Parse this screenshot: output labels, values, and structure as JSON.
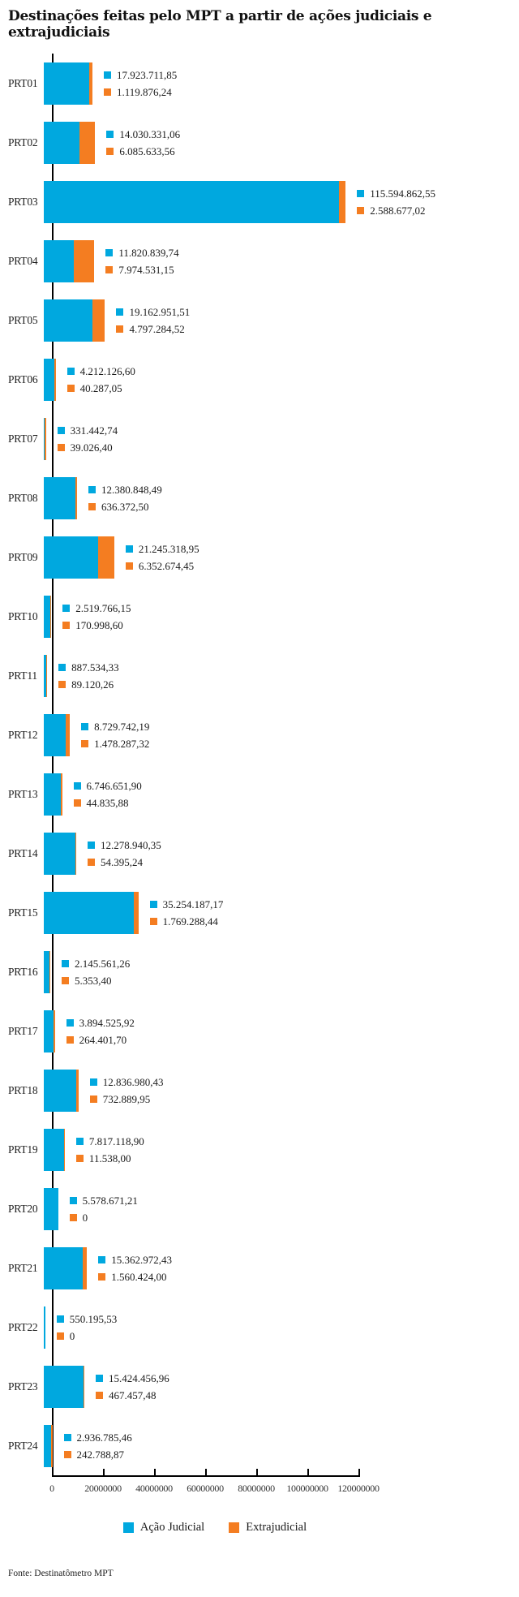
{
  "title": "Destinações feitas pelo MPT a partir de ações judiciais e extrajudiciais",
  "source": "Fonte: Destinatômetro MPT",
  "colors": {
    "judicial": "#00A8DF",
    "extrajudicial": "#F47D21",
    "axis": "#000000"
  },
  "legend": [
    {
      "label": "Ação Judicial",
      "color": "#00A8DF"
    },
    {
      "label": "Extrajudicial",
      "color": "#F47D21"
    }
  ],
  "chart_data": {
    "type": "bar",
    "orientation": "horizontal",
    "stacked": true,
    "title": "Destinações feitas pelo MPT a partir de ações judiciais e extrajudiciais",
    "xlabel": "",
    "ylabel": "",
    "xlim": [
      0,
      120000000
    ],
    "x_ticks": [
      "0",
      "20000000",
      "40000000",
      "60000000",
      "80000000",
      "100000000",
      "120000000"
    ],
    "grid": false,
    "legend_position": "bottom",
    "categories": [
      "PRT01",
      "PRT02",
      "PRT03",
      "PRT04",
      "PRT05",
      "PRT06",
      "PRT07",
      "PRT08",
      "PRT09",
      "PRT10",
      "PRT11",
      "PRT12",
      "PRT13",
      "PRT14",
      "PRT15",
      "PRT16",
      "PRT17",
      "PRT18",
      "PRT19",
      "PRT20",
      "PRT21",
      "PRT22",
      "PRT23",
      "PRT24"
    ],
    "series": [
      {
        "name": "Ação Judicial",
        "color": "#00A8DF",
        "values": [
          17923711.85,
          14030331.06,
          115594862.55,
          11820839.74,
          19162951.51,
          4212126.6,
          331442.74,
          12380848.49,
          21245318.95,
          2519766.15,
          887534.33,
          8729742.19,
          6746651.9,
          12278940.35,
          35254187.17,
          2145561.26,
          3894525.92,
          12836980.43,
          7817118.9,
          5578671.21,
          15362972.43,
          550195.53,
          15424456.96,
          2936785.46
        ],
        "labels": [
          "17.923.711,85",
          "14.030.331,06",
          "115.594.862,55",
          "11.820.839,74",
          "19.162.951,51",
          "4.212.126,60",
          "331.442,74",
          "12.380.848,49",
          "21.245.318,95",
          "2.519.766,15",
          "887.534,33",
          "8.729.742,19",
          "6.746.651,90",
          "12.278.940,35",
          "35.254.187,17",
          "2.145.561,26",
          "3.894.525,92",
          "12.836.980,43",
          "7.817.118,90",
          "5.578.671,21",
          "15.362.972,43",
          "550.195,53",
          "15.424.456,96",
          "2.936.785,46"
        ]
      },
      {
        "name": "Extrajudicial",
        "color": "#F47D21",
        "values": [
          1119876.24,
          6085633.56,
          2588677.02,
          7974531.15,
          4797284.52,
          40287.05,
          39026.4,
          636372.5,
          6352674.45,
          170998.6,
          89120.26,
          1478287.32,
          44835.88,
          54395.24,
          1769288.44,
          5353.4,
          264401.7,
          732889.95,
          11538.0,
          0,
          1560424.0,
          0,
          467457.48,
          242788.87
        ],
        "labels": [
          "1.119.876,24",
          "6.085.633,56",
          "2.588.677,02",
          "7.974.531,15",
          "4.797.284,52",
          "40.287,05",
          "39.026,40",
          "636.372,50",
          "6.352.674,45",
          "170.998,60",
          "89.120,26",
          "1.478.287,32",
          "44.835,88",
          "54.395,24",
          "1.769.288,44",
          "5.353,40",
          "264.401,70",
          "732.889,95",
          "11.538,00",
          "0",
          "1.560.424,00",
          "0",
          "467.457,48",
          "242.788,87"
        ]
      }
    ]
  }
}
